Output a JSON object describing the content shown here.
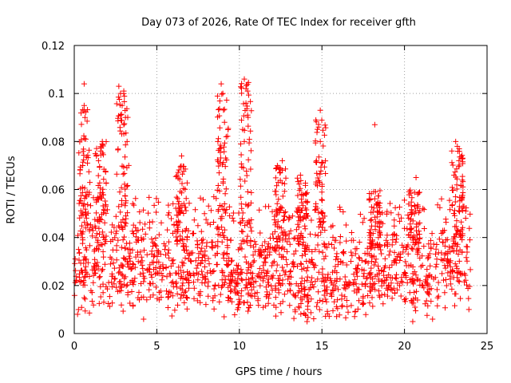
{
  "chart_data": {
    "type": "scatter",
    "title": "Day 073 of 2026, Rate Of TEC Index for receiver gfth",
    "xlabel": "GPS time / hours",
    "ylabel": "ROTI / TECUs",
    "xlim": [
      0,
      25
    ],
    "ylim": [
      0,
      0.12
    ],
    "x_ticks": [
      "0",
      "5",
      "10",
      "15",
      "20",
      "25"
    ],
    "y_ticks": [
      "0",
      "0.02",
      "0.04",
      "0.06",
      "0.08",
      "0.1",
      "0.12"
    ],
    "grid": true,
    "marker": "plus",
    "color": "#ff0000",
    "legend": "none",
    "series": [
      {
        "x_range": [
          0,
          24
        ],
        "note_points": [
          {
            "x": 0.6,
            "y": 0.104
          },
          {
            "x": 0.6,
            "y": 0.095
          },
          {
            "x": 0.65,
            "y": 0.09
          },
          {
            "x": 0.7,
            "y": 0.081
          },
          {
            "x": 0.8,
            "y": 0.071
          },
          {
            "x": 1.7,
            "y": 0.08
          },
          {
            "x": 1.6,
            "y": 0.076
          },
          {
            "x": 2.7,
            "y": 0.103
          },
          {
            "x": 2.8,
            "y": 0.1
          },
          {
            "x": 2.9,
            "y": 0.095
          },
          {
            "x": 3.0,
            "y": 0.101
          },
          {
            "x": 3.1,
            "y": 0.09
          },
          {
            "x": 3.0,
            "y": 0.087
          },
          {
            "x": 3.2,
            "y": 0.08
          },
          {
            "x": 3.3,
            "y": 0.07
          },
          {
            "x": 6.5,
            "y": 0.074
          },
          {
            "x": 8.9,
            "y": 0.104
          },
          {
            "x": 9.0,
            "y": 0.1
          },
          {
            "x": 9.1,
            "y": 0.088
          },
          {
            "x": 9.2,
            "y": 0.082
          },
          {
            "x": 8.7,
            "y": 0.08
          },
          {
            "x": 8.8,
            "y": 0.077
          },
          {
            "x": 10.3,
            "y": 0.106
          },
          {
            "x": 10.4,
            "y": 0.102
          },
          {
            "x": 10.5,
            "y": 0.101
          },
          {
            "x": 10.4,
            "y": 0.096
          },
          {
            "x": 10.5,
            "y": 0.091
          },
          {
            "x": 10.2,
            "y": 0.085
          },
          {
            "x": 10.3,
            "y": 0.08
          },
          {
            "x": 12.6,
            "y": 0.072
          },
          {
            "x": 12.6,
            "y": 0.068
          },
          {
            "x": 14.9,
            "y": 0.093
          },
          {
            "x": 14.8,
            "y": 0.086
          },
          {
            "x": 14.9,
            "y": 0.08
          },
          {
            "x": 15.0,
            "y": 0.071
          },
          {
            "x": 18.2,
            "y": 0.087
          },
          {
            "x": 23.1,
            "y": 0.08
          },
          {
            "x": 23.2,
            "y": 0.078
          },
          {
            "x": 23.3,
            "y": 0.072
          },
          {
            "x": 23.0,
            "y": 0.066
          },
          {
            "x": 20.7,
            "y": 0.065
          },
          {
            "x": 13.7,
            "y": 0.066
          },
          {
            "x": 20.5,
            "y": 0.005
          },
          {
            "x": 14.1,
            "y": 0.005
          },
          {
            "x": 4.2,
            "y": 0.006
          },
          {
            "x": 0.2,
            "y": 0.008
          },
          {
            "x": 23.9,
            "y": 0.01
          },
          {
            "x": 21.7,
            "y": 0.006
          }
        ]
      }
    ]
  }
}
